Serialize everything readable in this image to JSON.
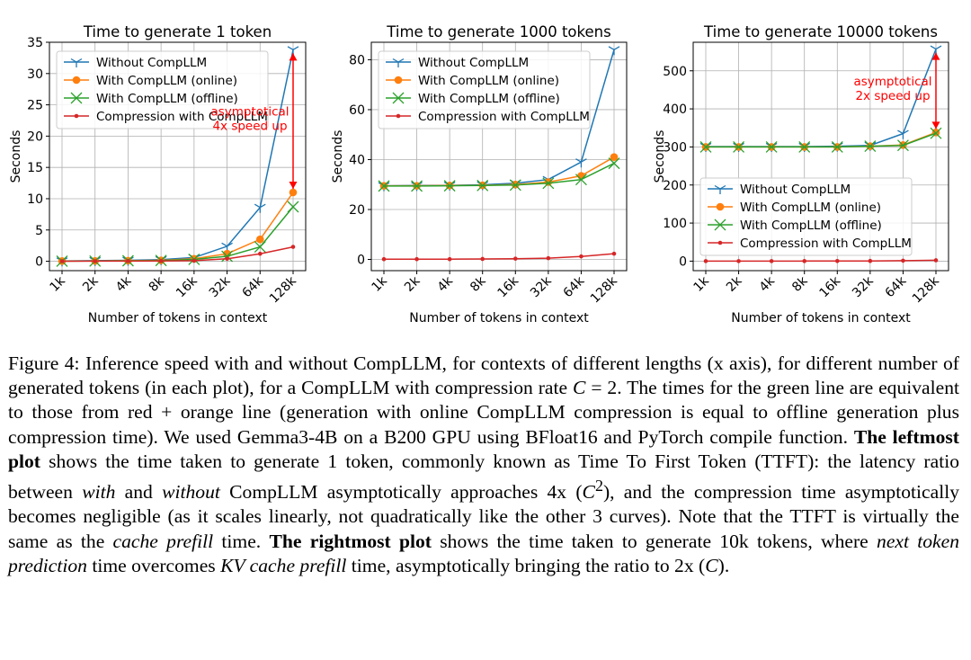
{
  "chart_data": [
    {
      "type": "line",
      "title": "Time to generate 1 token",
      "xlabel": "Number of tokens in context",
      "ylabel": "Seconds",
      "categories": [
        "1k",
        "2k",
        "4k",
        "8k",
        "16k",
        "32k",
        "64k",
        "128k"
      ],
      "ylim": [
        -1.5,
        35
      ],
      "yticks": [
        0,
        5,
        10,
        15,
        20,
        25,
        30,
        35
      ],
      "grid": true,
      "legend": "top-left",
      "series": [
        {
          "name": "Without CompLLM",
          "color": "#1f77b4",
          "marker": "tri",
          "values": [
            0.05,
            0.1,
            0.15,
            0.25,
            0.6,
            2.4,
            8.6,
            33.8
          ]
        },
        {
          "name": "With CompLLM (online)",
          "color": "#ff7f0e",
          "marker": "circle",
          "values": [
            0.03,
            0.05,
            0.1,
            0.15,
            0.4,
            1.2,
            3.5,
            11.0
          ]
        },
        {
          "name": "With CompLLM (offline)",
          "color": "#2ca02c",
          "marker": "x",
          "values": [
            0.02,
            0.04,
            0.08,
            0.12,
            0.3,
            0.8,
            2.3,
            8.7
          ]
        },
        {
          "name": "Compression with CompLLM",
          "color": "#d62728",
          "marker": "dot",
          "values": [
            0.01,
            0.02,
            0.03,
            0.05,
            0.1,
            0.4,
            1.2,
            2.3
          ]
        }
      ],
      "annotation": {
        "lines": [
          "asymptotical",
          "4x speed up"
        ],
        "from": 33.8,
        "to": 11.0,
        "color": "#ff0000"
      }
    },
    {
      "type": "line",
      "title": "Time to generate 1000 tokens",
      "xlabel": "Number of tokens in context",
      "ylabel": "Seconds",
      "categories": [
        "1k",
        "2k",
        "4k",
        "8k",
        "16k",
        "32k",
        "64k",
        "128k"
      ],
      "ylim": [
        -4.5,
        87
      ],
      "yticks": [
        0,
        20,
        40,
        60,
        80
      ],
      "grid": true,
      "legend": "top-left",
      "series": [
        {
          "name": "Without CompLLM",
          "color": "#1f77b4",
          "marker": "tri",
          "values": [
            29.5,
            29.6,
            29.7,
            29.9,
            30.5,
            32.0,
            39.0,
            84.0
          ]
        },
        {
          "name": "With CompLLM (online)",
          "color": "#ff7f0e",
          "marker": "circle",
          "values": [
            29.5,
            29.5,
            29.6,
            29.7,
            30.0,
            31.0,
            33.5,
            41.0
          ]
        },
        {
          "name": "With CompLLM (offline)",
          "color": "#2ca02c",
          "marker": "x",
          "values": [
            29.4,
            29.4,
            29.5,
            29.6,
            29.8,
            30.5,
            32.0,
            38.5
          ]
        },
        {
          "name": "Compression with CompLLM",
          "color": "#d62728",
          "marker": "dot",
          "values": [
            0.1,
            0.1,
            0.1,
            0.2,
            0.3,
            0.5,
            1.2,
            2.3
          ]
        }
      ]
    },
    {
      "type": "line",
      "title": "Time to generate 10000 tokens",
      "xlabel": "Number of tokens in context",
      "ylabel": "Seconds",
      "categories": [
        "1k",
        "2k",
        "4k",
        "8k",
        "16k",
        "32k",
        "64k",
        "128k"
      ],
      "ylim": [
        -25,
        575
      ],
      "yticks": [
        0,
        100,
        200,
        300,
        400,
        500
      ],
      "grid": true,
      "legend": "lower-center",
      "series": [
        {
          "name": "Without CompLLM",
          "color": "#1f77b4",
          "marker": "tri",
          "values": [
            301,
            301,
            301,
            301,
            302,
            304,
            335,
            557
          ]
        },
        {
          "name": "With CompLLM (online)",
          "color": "#ff7f0e",
          "marker": "circle",
          "values": [
            300,
            300,
            300,
            300,
            300,
            302,
            305,
            338
          ]
        },
        {
          "name": "With CompLLM (offline)",
          "color": "#2ca02c",
          "marker": "x",
          "values": [
            300,
            300,
            300,
            300,
            300,
            302,
            304,
            336
          ]
        },
        {
          "name": "Compression with CompLLM",
          "color": "#d62728",
          "marker": "dot",
          "values": [
            0.1,
            0.1,
            0.1,
            0.2,
            0.3,
            0.5,
            1.2,
            2.3
          ]
        }
      ],
      "annotation": {
        "lines": [
          "asymptotical",
          "2x speed up"
        ],
        "from": 557,
        "to": 338,
        "color": "#ff0000"
      }
    }
  ],
  "caption": {
    "label": "Figure 4:",
    "s1": " Inference speed with and without CompLLM, for contexts of different lengths (x axis), for different number of generated tokens (in each plot), for a CompLLM with compression rate ",
    "math_c": "C",
    "eq": " = 2.",
    "s2": " The times for the green line are equivalent to those from red + orange line (generation with online CompLLM compression is equal to offline generation plus compression time). We used Gemma3-4B on a B200 GPU using BFloat16 and PyTorch compile function. ",
    "bold1": "The leftmost plot",
    "s3": " shows the time taken to generate 1 token, commonly known as Time To First Token (TTFT): the latency ratio between ",
    "it_with": "with",
    "s4": " and ",
    "it_without": "without",
    "s5": " CompLLM asymptotically approaches 4x (",
    "math_c2": "C",
    "sup2": "2",
    "s6": "), and the compression time asymptotically becomes negligible (as it scales linearly, not quadratically like the other 3 curves). Note that the TTFT is virtually the same as the ",
    "it_cache": "cache prefill",
    "s7": " time. ",
    "bold2": "The rightmost plot",
    "s8": " shows the time taken to generate 10k tokens, where ",
    "it_next": "next token prediction",
    "s9": " time overcomes ",
    "it_kv": "KV cache prefill",
    "s10": " time, asymptotically bringing the ratio to 2x (",
    "math_c3": "C",
    "s11": ")."
  }
}
